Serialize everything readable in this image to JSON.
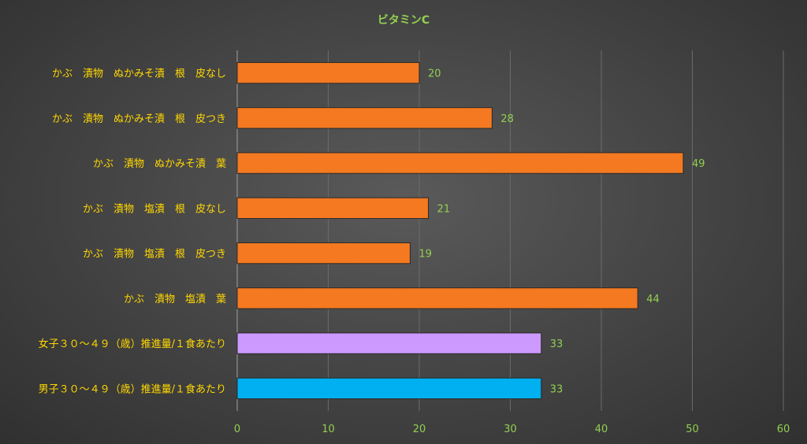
{
  "chart_data": {
    "type": "bar",
    "orientation": "horizontal",
    "title": "ビタミンC",
    "categories": [
      "かぶ　漬物　ぬかみそ漬　根　皮なし",
      "かぶ　漬物　ぬかみそ漬　根　皮つき",
      "かぶ　漬物　ぬかみそ漬　葉",
      "かぶ　漬物　塩漬　根　皮なし",
      "かぶ　漬物　塩漬　根　皮つき",
      "かぶ　漬物　塩漬　葉",
      "女子３０～４９（歳）推進量/１食あたり",
      "男子３０～４９（歳）推進量/１食あたり"
    ],
    "values": [
      20,
      28,
      49,
      21,
      19,
      44,
      33.4,
      33.4
    ],
    "value_labels": [
      "20",
      "28",
      "49",
      "21",
      "19",
      "44",
      "33",
      "33"
    ],
    "bar_colors": [
      "#f47920",
      "#f47920",
      "#f47920",
      "#f47920",
      "#f47920",
      "#f47920",
      "#cc99ff",
      "#00b0f0"
    ],
    "xlim": [
      0,
      60
    ],
    "xticks": [
      0,
      10,
      20,
      30,
      40,
      50,
      60
    ],
    "grid": true,
    "legend": "none"
  }
}
